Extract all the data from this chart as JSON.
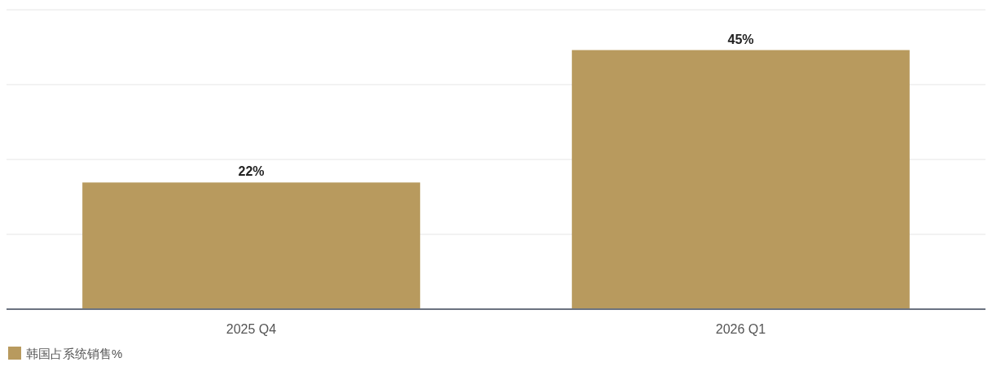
{
  "chart_data": {
    "type": "bar",
    "categories": [
      "2025 Q4",
      "2026 Q1"
    ],
    "series": [
      {
        "name": "韩国占系统销售%",
        "color": "#b89a5e",
        "values": [
          22,
          45
        ],
        "value_labels": [
          "22%",
          "45%"
        ]
      }
    ],
    "ylim": [
      0,
      52
    ],
    "yticks": [
      {
        "value": 0,
        "label": null
      },
      {
        "value": 13,
        "label": null
      },
      {
        "value": 26,
        "label": null
      },
      {
        "value": 39,
        "label": null
      },
      {
        "value": 52,
        "label": null
      }
    ],
    "grid": "y",
    "tick_labels": "x",
    "legend": "bottom left"
  }
}
